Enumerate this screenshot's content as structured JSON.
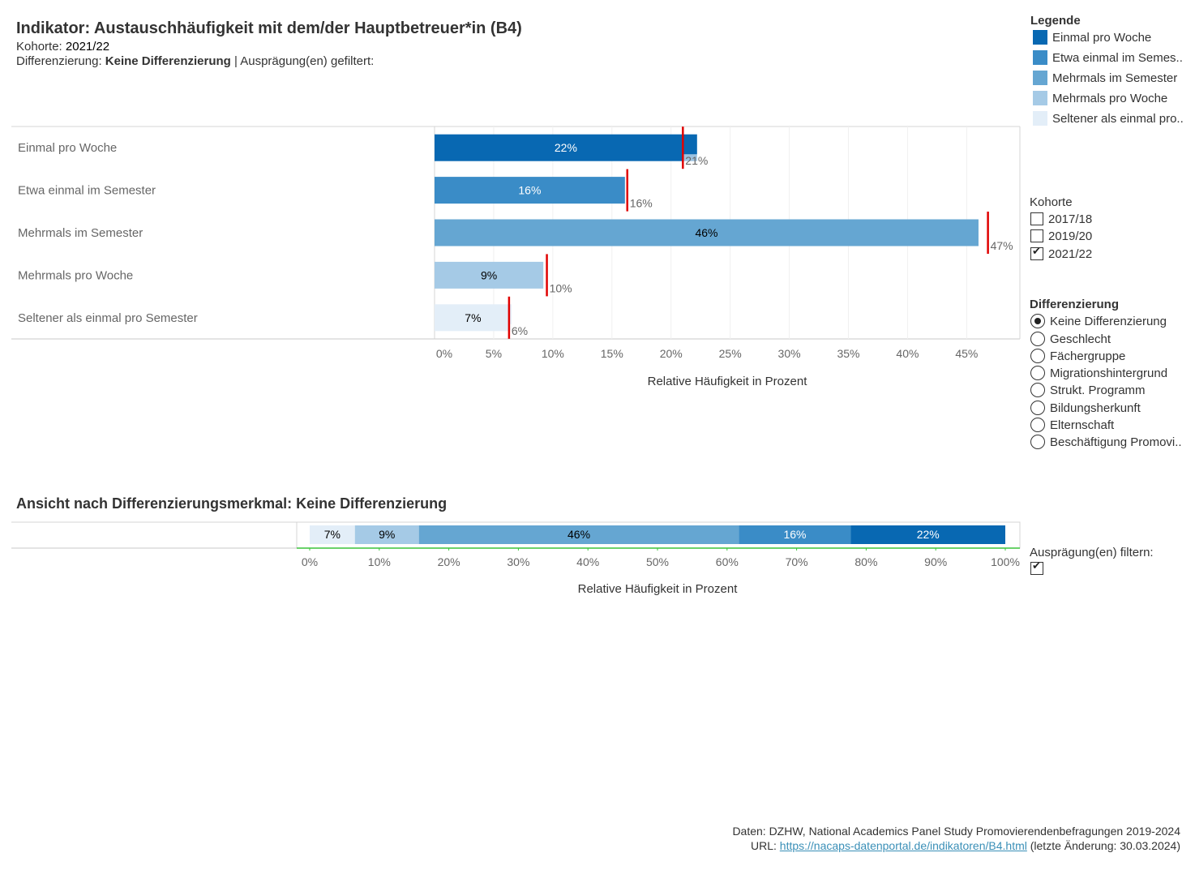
{
  "header": {
    "title": "Indikator: Austauschhäufigkeit mit dem/der Hauptbetreuer*in (B4)",
    "kohorte_label": "Kohorte:",
    "kohorte_value": "2021/22",
    "diff_label": "Differenzierung:",
    "diff_value": "Keine Differenzierung",
    "diff_suffix": "| Ausprägung(en) gefiltert:"
  },
  "legend": {
    "title": "Legende",
    "items": [
      {
        "label": "Einmal pro Woche",
        "color": "#0868b2"
      },
      {
        "label": "Etwa einmal im Semes..",
        "color": "#3a8cc7"
      },
      {
        "label": "Mehrmals im Semester",
        "color": "#65a6d2"
      },
      {
        "label": "Mehrmals pro Woche",
        "color": "#a5cae6"
      },
      {
        "label": "Seltener als einmal pro..",
        "color": "#e3eef8"
      }
    ]
  },
  "kohorte_filter": {
    "label": "Kohorte",
    "options": [
      {
        "label": "2017/18",
        "checked": false
      },
      {
        "label": "2019/20",
        "checked": false
      },
      {
        "label": "2021/22",
        "checked": true
      }
    ]
  },
  "differenzierung_filter": {
    "label": "Differenzierung",
    "options": [
      {
        "label": "Keine Differenzierung",
        "selected": true
      },
      {
        "label": "Geschlecht",
        "selected": false
      },
      {
        "label": "Fächergruppe",
        "selected": false
      },
      {
        "label": "Migrationshintergrund",
        "selected": false
      },
      {
        "label": "Strukt. Programm",
        "selected": false
      },
      {
        "label": "Bildungsherkunft",
        "selected": false
      },
      {
        "label": "Elternschaft",
        "selected": false
      },
      {
        "label": "Beschäftigung Promovi..",
        "selected": false
      }
    ]
  },
  "auspraegung_filter": {
    "label": "Ausprägung(en) filtern:",
    "checked": true
  },
  "section2_title": "Ansicht nach Differenzierungsmerkmal: Keine Differenzierung",
  "chart_data": [
    {
      "type": "bar",
      "orientation": "horizontal",
      "categories": [
        "Einmal pro Woche",
        "Etwa einmal im Semester",
        "Mehrmals im Semester",
        "Mehrmals pro Woche",
        "Seltener als einmal pro Semester"
      ],
      "values": [
        22.2,
        16.1,
        46.0,
        9.2,
        6.5
      ],
      "value_labels": [
        "22%",
        "16%",
        "46%",
        "9%",
        "7%"
      ],
      "colors": [
        "#0868b2",
        "#3a8cc7",
        "#65a6d2",
        "#a5cae6",
        "#e3eef8"
      ],
      "label_colors": [
        "#ffffff",
        "#ffffff",
        "#000000",
        "#000000",
        "#000000"
      ],
      "reference": {
        "values": [
          21.0,
          16.3,
          46.8,
          9.5,
          6.3
        ],
        "labels": [
          "21%",
          "16%",
          "47%",
          "10%",
          "6%"
        ],
        "color": "#e00000"
      },
      "xticks": [
        "0%",
        "5%",
        "10%",
        "15%",
        "20%",
        "25%",
        "30%",
        "35%",
        "40%",
        "45%"
      ],
      "xlim": [
        0,
        49.5
      ],
      "xlabel": "Relative Häufigkeit in Prozent"
    },
    {
      "type": "bar",
      "orientation": "horizontal",
      "stacked": true,
      "segments": [
        {
          "name": "Seltener als einmal pro Semester",
          "value": 6.5,
          "label": "7%",
          "color": "#e3eef8",
          "label_color": "#000000"
        },
        {
          "name": "Mehrmals pro Woche",
          "value": 9.2,
          "label": "9%",
          "color": "#a5cae6",
          "label_color": "#000000"
        },
        {
          "name": "Mehrmals im Semester",
          "value": 46.0,
          "label": "46%",
          "color": "#65a6d2",
          "label_color": "#000000"
        },
        {
          "name": "Etwa einmal im Semester",
          "value": 16.1,
          "label": "16%",
          "color": "#3a8cc7",
          "label_color": "#ffffff"
        },
        {
          "name": "Einmal pro Woche",
          "value": 22.2,
          "label": "22%",
          "color": "#0868b2",
          "label_color": "#ffffff"
        }
      ],
      "xticks": [
        "0%",
        "10%",
        "20%",
        "30%",
        "40%",
        "50%",
        "60%",
        "70%",
        "80%",
        "90%",
        "100%"
      ],
      "xlim": [
        0,
        100
      ],
      "xlabel": "Relative Häufigkeit in Prozent"
    }
  ],
  "footer": {
    "source": "Daten: DZHW, National Academics Panel Study Promovierendenbefragungen 2019-2024",
    "url_label": "URL:",
    "url": "https://nacaps-datenportal.de/indikatoren/B4.html",
    "updated": "(letzte Änderung: 30.03.2024)"
  }
}
